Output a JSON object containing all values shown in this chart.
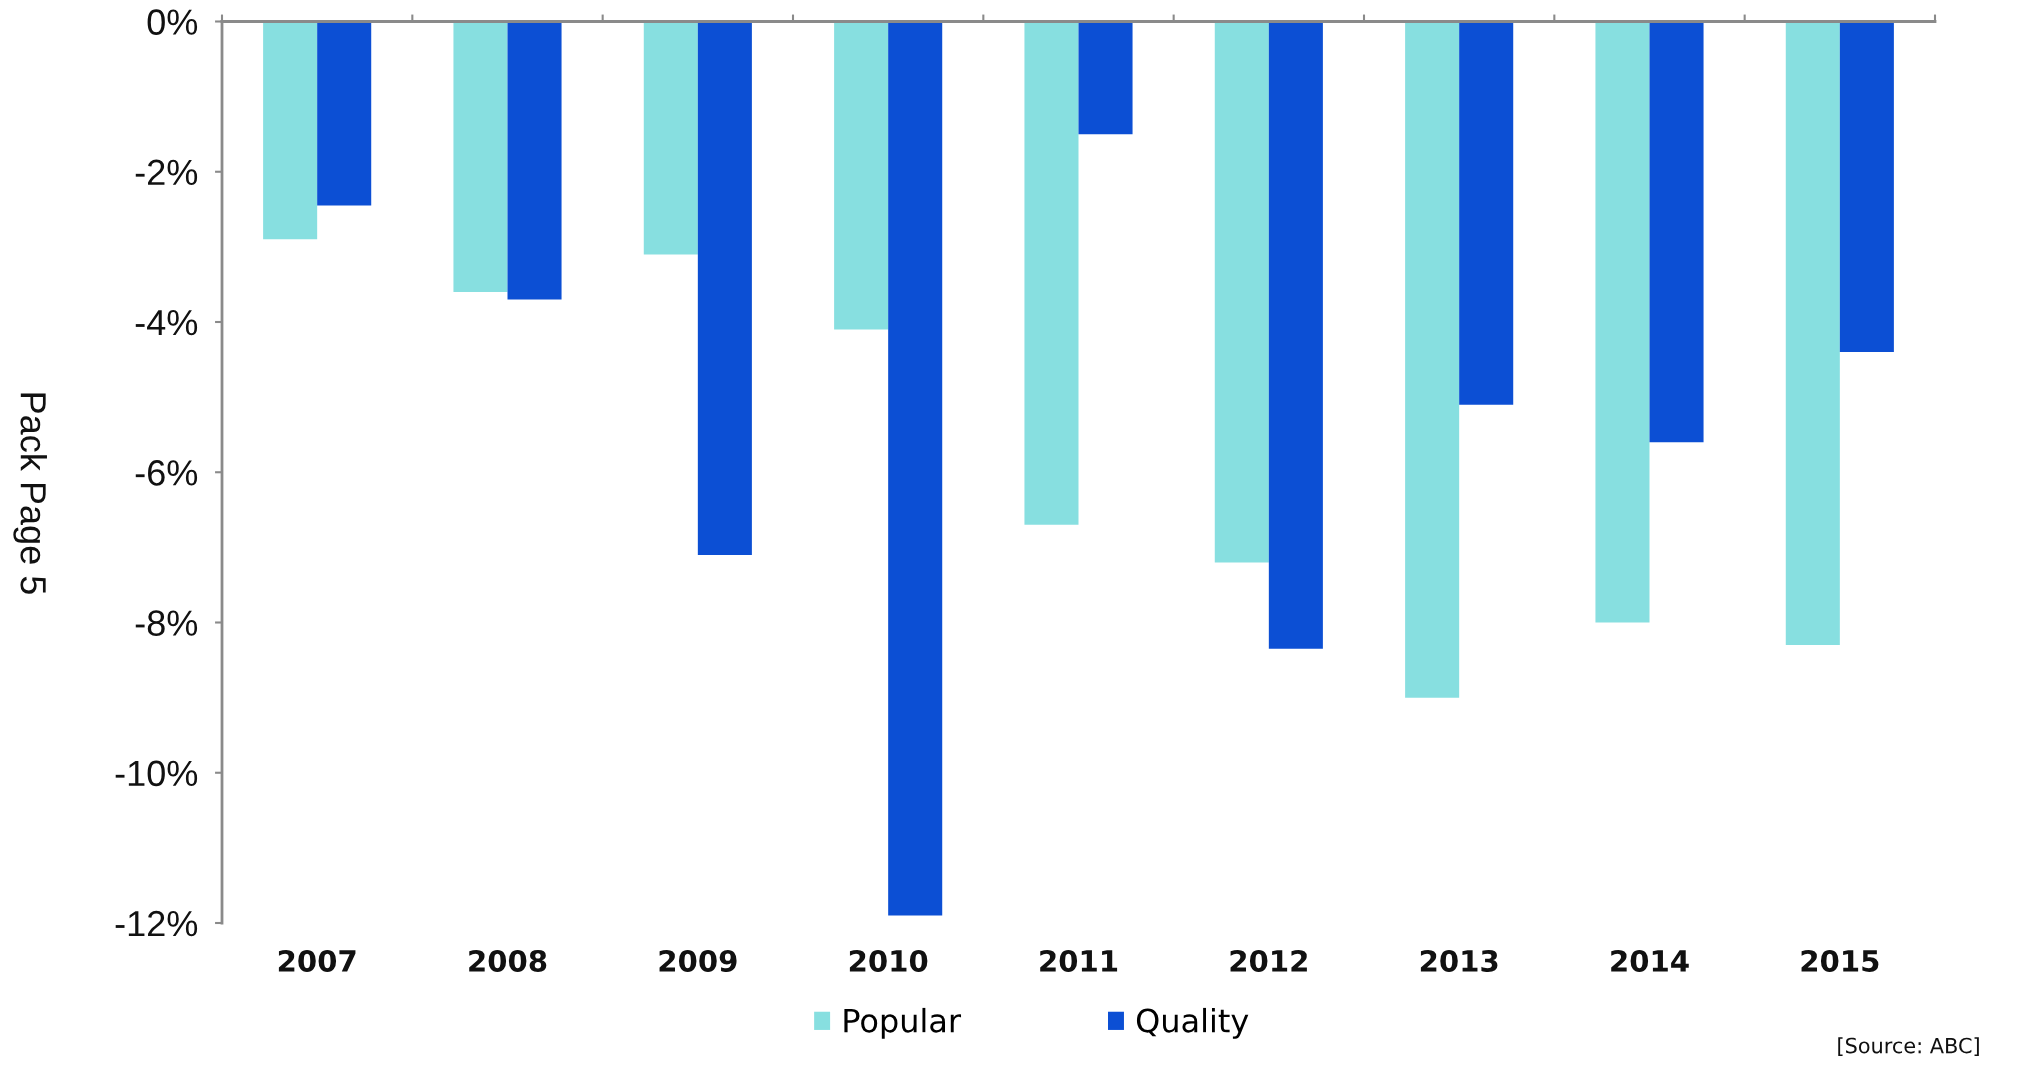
{
  "chart_data": {
    "type": "bar",
    "ylabel": "Pack Page 5",
    "categories": [
      "2007",
      "2008",
      "2009",
      "2010",
      "2011",
      "2012",
      "2013",
      "2014",
      "2015"
    ],
    "series": [
      {
        "name": "Popular",
        "color": "#87dfe0",
        "values": [
          -2.9,
          -3.6,
          -3.1,
          -4.1,
          -6.7,
          -7.2,
          -9.0,
          -8.0,
          -8.3
        ]
      },
      {
        "name": "Quality",
        "color": "#0c4fd4",
        "values": [
          -2.45,
          -3.7,
          -7.1,
          -11.9,
          -1.5,
          -8.35,
          -5.1,
          -5.6,
          -4.4
        ]
      }
    ],
    "ylim": [
      -12,
      0
    ],
    "yticks": [
      {
        "value": 0,
        "label": "0%"
      },
      {
        "value": -2,
        "label": "-2%"
      },
      {
        "value": -4,
        "label": "-4%"
      },
      {
        "value": -6,
        "label": "-6%"
      },
      {
        "value": -8,
        "label": "-8%"
      },
      {
        "value": -10,
        "label": "-10%"
      },
      {
        "value": -12,
        "label": "-12%"
      }
    ],
    "legend": "bottom",
    "annotations": [
      "[Source: ABC]"
    ]
  }
}
